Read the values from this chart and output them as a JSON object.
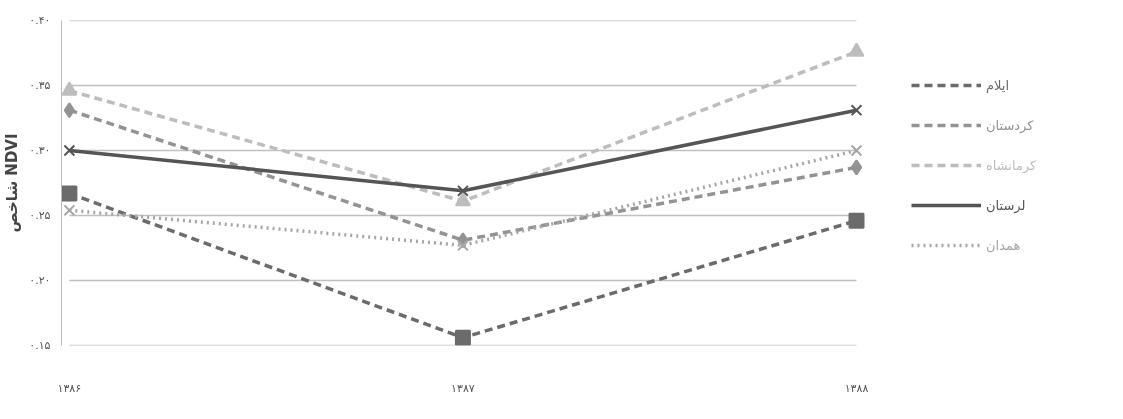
{
  "chart_data": {
    "type": "line",
    "ylabel": "شاخص NDVI",
    "categories": [
      "۱۳۸۶",
      "۱۳۸۷",
      "۱۳۸۸"
    ],
    "series": [
      {
        "name": "ایلام",
        "color": "#6b6b6b",
        "marker": "square",
        "line_style": "dashed",
        "values": [
          0.267,
          0.156,
          0.246
        ]
      },
      {
        "name": "کردستان",
        "color": "#939393",
        "marker": "diamond",
        "line_style": "dashed",
        "values": [
          0.331,
          0.231,
          0.287
        ]
      },
      {
        "name": "کرمانشاه",
        "color": "#bdbdbd",
        "marker": "triangle",
        "line_style": "dashed",
        "values": [
          0.346,
          0.261,
          0.376
        ]
      },
      {
        "name": "لرستان",
        "color": "#555555",
        "marker": "cross",
        "line_style": "solid",
        "values": [
          0.3,
          0.269,
          0.331
        ]
      },
      {
        "name": "همدان",
        "color": "#a6a6a6",
        "marker": "cross",
        "line_style": "dotted",
        "values": [
          0.254,
          0.227,
          0.3
        ]
      }
    ],
    "ylim": [
      0.15,
      0.4
    ],
    "yticks": [
      {
        "value": 0.15,
        "label": "۰.۱۵"
      },
      {
        "value": 0.2,
        "label": "۰.۲۰"
      },
      {
        "value": 0.25,
        "label": "۰.۲۵"
      },
      {
        "value": 0.3,
        "label": "۰.۳۰"
      },
      {
        "value": 0.35,
        "label": "۰.۳۵"
      },
      {
        "value": 0.4,
        "label": "۰.۴۰"
      }
    ],
    "grid": "y",
    "legend": "right"
  }
}
